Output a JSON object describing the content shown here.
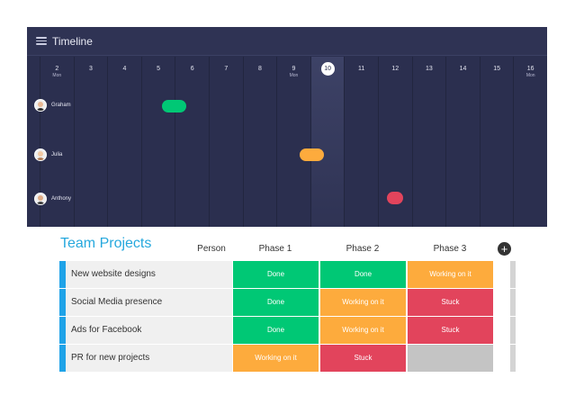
{
  "timeline": {
    "title": "Timeline",
    "days": [
      {
        "num": "2",
        "dow": "Mon"
      },
      {
        "num": "3",
        "dow": ""
      },
      {
        "num": "4",
        "dow": ""
      },
      {
        "num": "5",
        "dow": ""
      },
      {
        "num": "6",
        "dow": ""
      },
      {
        "num": "7",
        "dow": ""
      },
      {
        "num": "8",
        "dow": ""
      },
      {
        "num": "9",
        "dow": "Mon"
      },
      {
        "num": "10",
        "dow": ""
      },
      {
        "num": "11",
        "dow": ""
      },
      {
        "num": "12",
        "dow": ""
      },
      {
        "num": "13",
        "dow": ""
      },
      {
        "num": "14",
        "dow": ""
      },
      {
        "num": "15",
        "dow": ""
      },
      {
        "num": "16",
        "dow": "Mon"
      }
    ],
    "today": "10",
    "people": [
      {
        "name": "Graham",
        "bar_color": "#00c875"
      },
      {
        "name": "Julia",
        "bar_color": "#fdab3d"
      },
      {
        "name": "Anthony",
        "bar_color": "#e2445c"
      }
    ]
  },
  "projects": {
    "title": "Team Projects",
    "columns": {
      "person": "Person",
      "phase1": "Phase 1",
      "phase2": "Phase 2",
      "phase3": "Phase 3"
    },
    "add_icon": "plus-icon",
    "rows": [
      {
        "name": "New website designs",
        "phase1": "Done",
        "phase2": "Done",
        "phase3": "Working on it"
      },
      {
        "name": "Social Media presence",
        "phase1": "Done",
        "phase2": "Working on it",
        "phase3": "Stuck"
      },
      {
        "name": "Ads for Facebook",
        "phase1": "Done",
        "phase2": "Working on it",
        "phase3": "Stuck"
      },
      {
        "name": "PR for new projects",
        "phase1": "Working on it",
        "phase2": "Stuck",
        "phase3": ""
      }
    ]
  },
  "status_colors": {
    "Done": "#00c875",
    "Working on it": "#fdab3d",
    "Stuck": "#e2445c",
    "": "#c4c4c4"
  }
}
